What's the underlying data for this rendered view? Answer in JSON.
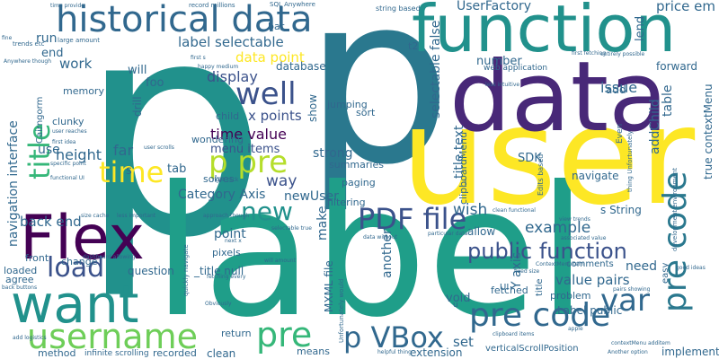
{
  "words": {
    "p_big": "p",
    "p_big2": "p",
    "label_big": "label",
    "user_big": "user",
    "data_big": "data",
    "function": "function",
    "historical_data": "historical data",
    "flex": "Flex",
    "want": "want",
    "username": "username",
    "load": "load",
    "precode": "pre code",
    "pre_code": "pre code",
    "ppre": "p pre",
    "pvbox": "p VBox",
    "pdf_file": "PDF file",
    "public_function": "public function",
    "well": "well",
    "time": "time",
    "new": "new",
    "pre_small": "pre",
    "var": "var",
    "title": "title",
    "time_value": "time value",
    "label_selectable": "label selectable",
    "data_point": "data point",
    "display": "display",
    "x_points": "x points",
    "menu_items": "menu items",
    "way": "way",
    "category_axis": "Category Axis",
    "navigation_interface": "navigation interface",
    "back_end": "back end",
    "height": "height",
    "userfactory": "UserFactory",
    "price_em": "price em",
    "issue": "issue",
    "make": "make",
    "newuser": "newUser",
    "wish": "wish",
    "example": "example",
    "y_axis": "Y axis",
    "another": "another",
    "value_pairs": "value pairs",
    "need": "need",
    "set": "set",
    "extension": "extension",
    "mxml_file": "MXML file",
    "void": "void",
    "fetched": "fetched",
    "label_public": "Label public",
    "problem": "problem",
    "implement": "implement",
    "clean": "clean",
    "means": "means",
    "return": "return",
    "method": "method",
    "recorded": "recorded",
    "infinite_scrolling": "infinite scrolling",
    "front": "front",
    "change": "change",
    "question": "question",
    "title_null": "_title null",
    "pixels": "pixels",
    "point": "point",
    "loaded": "loaded",
    "agree": "agree",
    "use": "use",
    "tab": "tab",
    "solves": "solves",
    "far": "far",
    "s": "s",
    "strong": "strong",
    "summaries": "summaries",
    "paging": "paging",
    "sdk": "SDK",
    "filtering": "filtering",
    "navigate": "navigate",
    "title_text": "_title text",
    "allow": "allow",
    "s_string": "s String",
    "number": "number",
    "web_application": "web application",
    "selectable_false": "selectable false",
    "clipboardmenu": "clipboardMenu",
    "jumping": "jumping",
    "sort": "sort",
    "show": "show",
    "database": "database",
    "forward": "forward",
    "table": "table",
    "addchild": "addChild",
    "add": "add",
    "true_contextmenu": "true contextMenu",
    "lend": "lend",
    "wondering": "wondering",
    "child": "child",
    "end": "end",
    "work": "work",
    "memory": "memory",
    "run": "run",
    "bar": "bar",
    "will": "will",
    "foo": "foo",
    "drill": "drill",
    "t2": "t2",
    "string_based": "string based",
    "sql_anywhere": "SQL Anywhere",
    "record_millions": "record millions",
    "time_provide": "time provide",
    "large_amount": "large amount",
    "trends_etc": "trends etc",
    "fine": "fine",
    "anywhere_though": "Anywhere though",
    "cairngorm": "Cairngorm",
    "clunky": "clunky",
    "user_reaches": "user reaches",
    "first_idea": "first idea",
    "specific_point": "specific point",
    "functional_ui": "functional UI",
    "dashboard_allowing": "dashboard allowing",
    "back_buttons": "back buttons",
    "add_logistics": "add logistics",
    "first_fetching": "first fetching",
    "entirely_possible": "entirely possible",
    "good_ideas": "good ideas",
    "clipboard_items": "clipboard items",
    "another_option": "Another option",
    "vertical_scroll": "verticalScrollPosition",
    "helpful_thing": "helpful thing",
    "unfortunately_thing": "thing Unfortunately",
    "development_env": "development environment",
    "associated_value": "associated value",
    "view_trends": "view trends",
    "comments": "comments",
    "pairs_showing": "pairs showing",
    "data_without": "data without",
    "particular_data": "particular data",
    "clean_functional": "clean functional",
    "ui": "UI",
    "unfortunately_would": "Unfortunately would",
    "fetching_every": "fetching every",
    "quickly_navigate": "quickly navigate",
    "obviously": "Obviously",
    "approach_though": "approach though",
    "right_click": "right click",
    "user_scrolls": "user scrolls",
    "happy_medium": "happy medium",
    "less_intuitive": "less intuitive",
    "first_s": "first s",
    "size_cache": "size cache",
    "less_important": "less important",
    "selectable_true": "selectable true",
    "next_x": "next x",
    "will_amount": "will amount",
    "u": "u",
    "edits_based": "Edits based",
    "contextmenuitem": "ContextMenuItem",
    "fixed_size": "fixed size",
    "even": "Even",
    "easy": "easy",
    "apple": "apple",
    "menu_contextmenu": "contextMenu additem"
  },
  "colors": {
    "teal": "#21918c",
    "tealdark": "#2a788e",
    "blue": "#31688e",
    "purple": "#440154",
    "indigo": "#3b528b",
    "violet": "#482878",
    "green": "#35b779",
    "lime": "#6ece58",
    "yellow": "#fde725",
    "yellowgreen": "#b5de2b",
    "sea": "#1f9e89"
  }
}
